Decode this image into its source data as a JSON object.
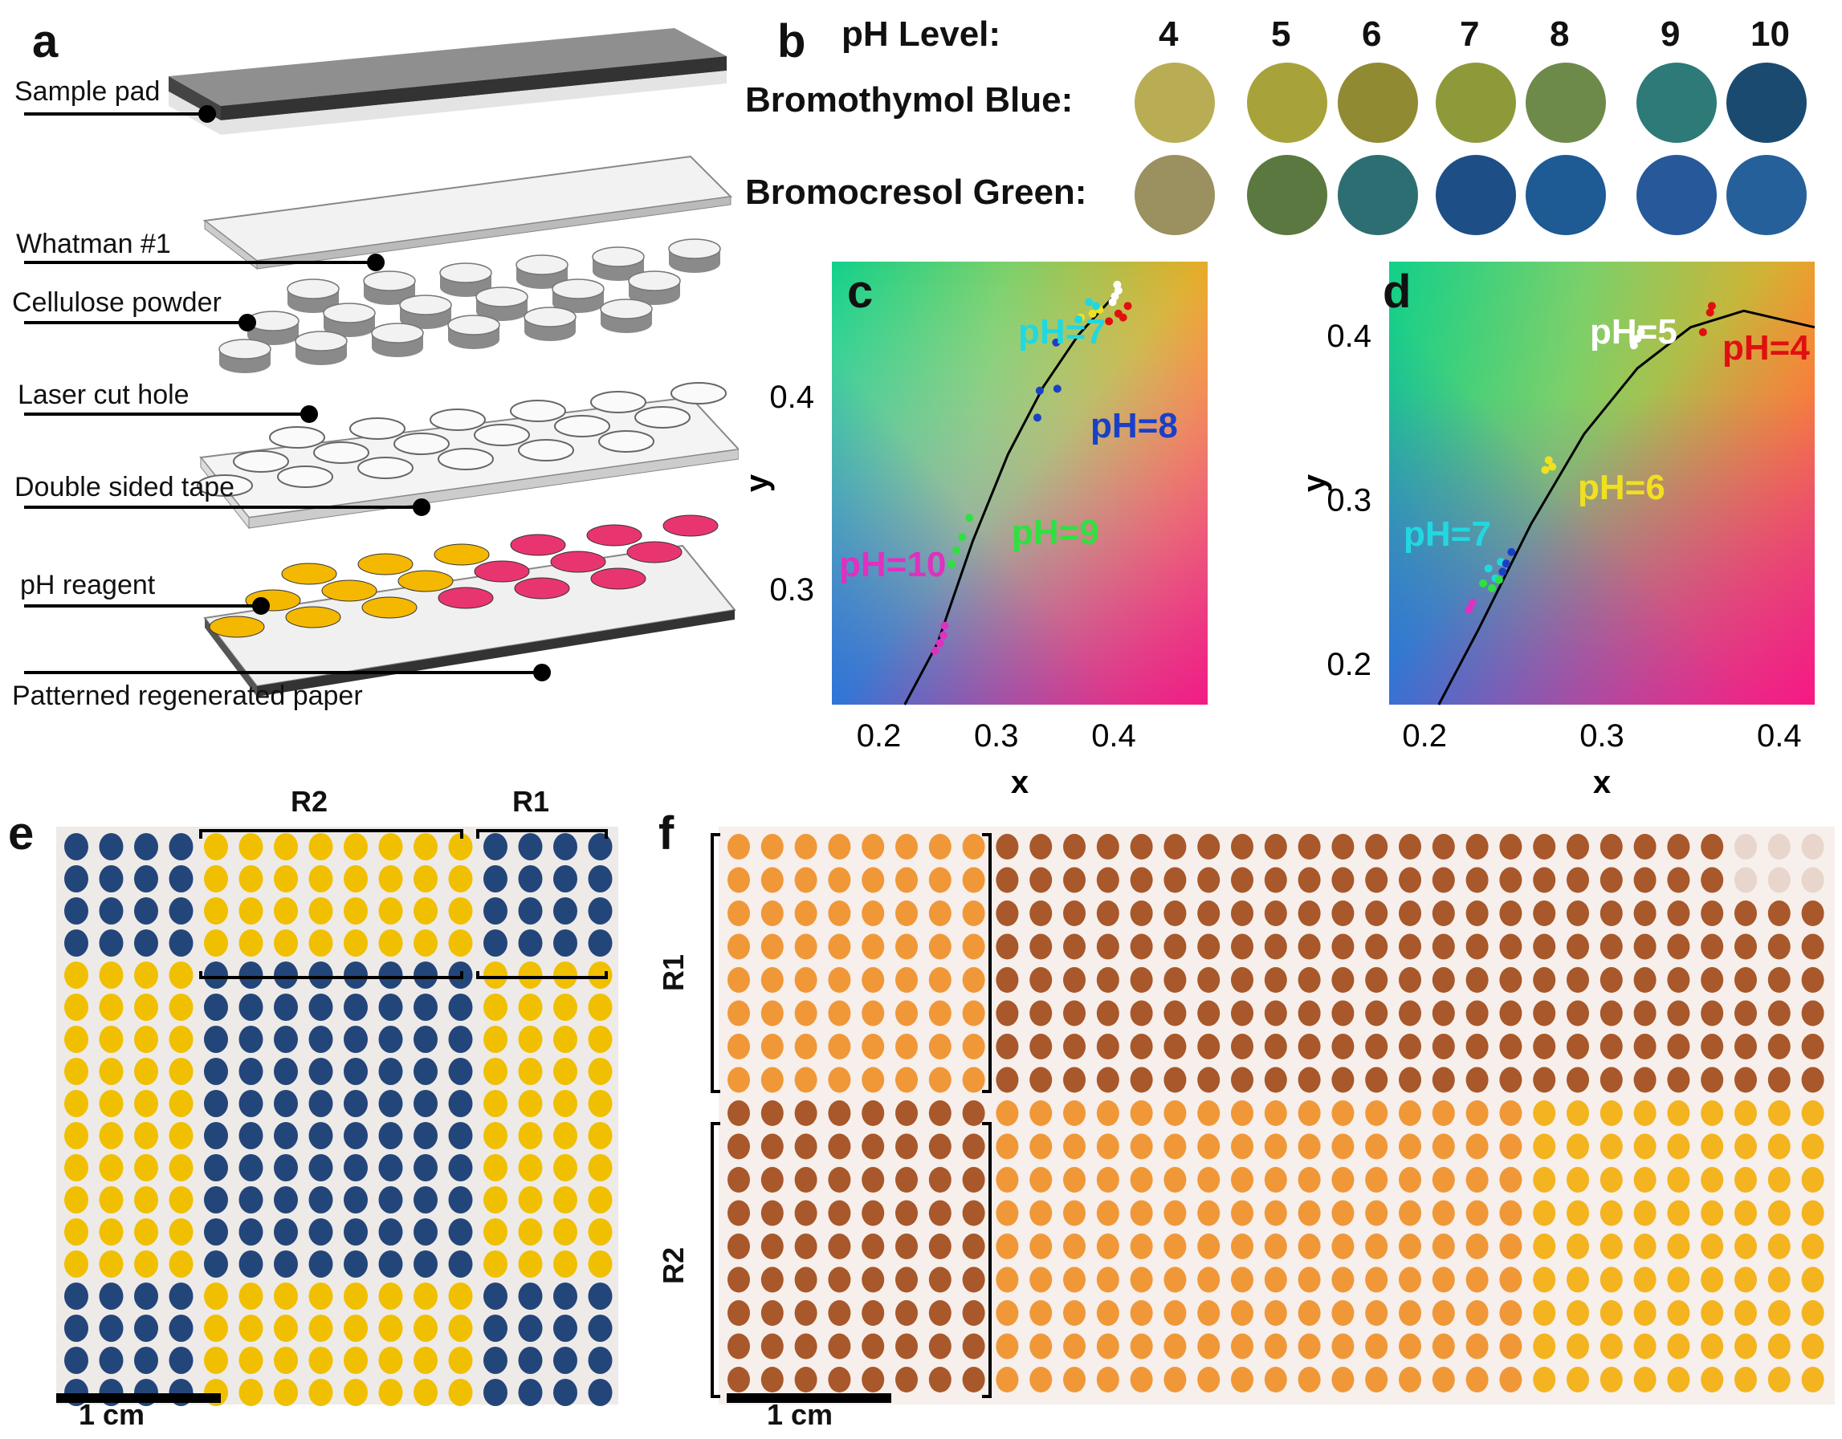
{
  "panel_labels": {
    "a": "a",
    "b": "b",
    "c": "c",
    "d": "d",
    "e": "e",
    "f": "f"
  },
  "panel_a": {
    "layers": [
      {
        "label": "Sample pad"
      },
      {
        "label": "Whatman #1"
      },
      {
        "label": "Cellulose powder"
      },
      {
        "label": "Laser cut hole"
      },
      {
        "label": "Double sided tape"
      },
      {
        "label": "pH reagent"
      },
      {
        "label": "Patterned regenerated paper"
      }
    ],
    "colors": {
      "reagent_yellow": "#f5b800",
      "reagent_pink": "#e83570",
      "sample_pad": "#9a9a9a"
    }
  },
  "panel_b": {
    "header": "pH Level:",
    "ph_levels": [
      "4",
      "5",
      "6",
      "7",
      "8",
      "9",
      "10"
    ],
    "rows": [
      {
        "name": "Bromothymol Blue:",
        "colors": [
          "#b8ad55",
          "#a8a23a",
          "#908a32",
          "#8e9a3a",
          "#6e8a4a",
          "#2d7a78",
          "#1a4a70"
        ]
      },
      {
        "name": "Bromocresol Green:",
        "colors": [
          "#9a9060",
          "#5a7840",
          "#2d6e72",
          "#1d4f86",
          "#1e5a94",
          "#27589a",
          "#26609a"
        ]
      }
    ]
  },
  "chart_data": [
    {
      "type": "scatter",
      "panel": "c",
      "xlabel": "x",
      "ylabel": "y",
      "xlim": [
        0.16,
        0.48
      ],
      "ylim": [
        0.24,
        0.47
      ],
      "xticks": [
        "0.2",
        "0.3",
        "0.4"
      ],
      "yticks": [
        "0.3",
        "0.4"
      ],
      "annotations": [
        {
          "text": "pH=7",
          "color": "#22d8e0"
        },
        {
          "text": "pH=8",
          "color": "#1a40c8"
        },
        {
          "text": "pH=9",
          "color": "#30e040"
        },
        {
          "text": "pH=10",
          "color": "#e030c0"
        }
      ],
      "series": [
        {
          "color": "#ffffff",
          "points": [
            [
              0.404,
              0.455
            ],
            [
              0.401,
              0.452
            ],
            [
              0.399,
              0.449
            ],
            [
              0.403,
              0.458
            ]
          ]
        },
        {
          "color": "#e01010",
          "points": [
            [
              0.412,
              0.447
            ],
            [
              0.404,
              0.443
            ],
            [
              0.408,
              0.441
            ],
            [
              0.396,
              0.439
            ]
          ]
        },
        {
          "color": "#f0e020",
          "points": [
            [
              0.372,
              0.441
            ],
            [
              0.382,
              0.443
            ],
            [
              0.388,
              0.445
            ]
          ]
        },
        {
          "color": "#20d8e0",
          "points": [
            [
              0.385,
              0.447
            ],
            [
              0.37,
              0.44
            ],
            [
              0.379,
              0.449
            ]
          ]
        },
        {
          "color": "#1a40c8",
          "points": [
            [
              0.351,
              0.428
            ],
            [
              0.352,
              0.404
            ],
            [
              0.337,
              0.403
            ],
            [
              0.335,
              0.389
            ]
          ]
        },
        {
          "color": "#30e040",
          "points": [
            [
              0.277,
              0.337
            ],
            [
              0.271,
              0.327
            ],
            [
              0.266,
              0.32
            ],
            [
              0.262,
              0.313
            ]
          ]
        },
        {
          "color": "#e030c0",
          "points": [
            [
              0.255,
              0.276
            ],
            [
              0.252,
              0.272
            ],
            [
              0.248,
              0.268
            ],
            [
              0.256,
              0.281
            ]
          ]
        }
      ],
      "curve": [
        [
          0.222,
          0.24
        ],
        [
          0.25,
          0.272
        ],
        [
          0.28,
          0.325
        ],
        [
          0.31,
          0.37
        ],
        [
          0.34,
          0.405
        ],
        [
          0.37,
          0.432
        ],
        [
          0.4,
          0.452
        ]
      ]
    },
    {
      "type": "scatter",
      "panel": "d",
      "xlabel": "x",
      "ylabel": "y",
      "xlim": [
        0.18,
        0.42
      ],
      "ylim": [
        0.175,
        0.445
      ],
      "xticks": [
        "0.2",
        "0.3",
        "0.4"
      ],
      "yticks": [
        "0.2",
        "0.3",
        "0.4"
      ],
      "annotations": [
        {
          "text": "pH=5",
          "color": "#ffffff"
        },
        {
          "text": "pH=4",
          "color": "#e01010"
        },
        {
          "text": "pH=6",
          "color": "#f0e020"
        },
        {
          "text": "pH=7",
          "color": "#22d8e0"
        }
      ],
      "series": [
        {
          "color": "#ffffff",
          "points": [
            [
              0.32,
              0.398
            ],
            [
              0.322,
              0.402
            ],
            [
              0.318,
              0.394
            ]
          ]
        },
        {
          "color": "#e01010",
          "points": [
            [
              0.362,
              0.418
            ],
            [
              0.357,
              0.402
            ],
            [
              0.361,
              0.414
            ]
          ]
        },
        {
          "color": "#f0e020",
          "points": [
            [
              0.27,
              0.324
            ],
            [
              0.272,
              0.32
            ],
            [
              0.268,
              0.318
            ]
          ]
        },
        {
          "color": "#20d8e0",
          "points": [
            [
              0.236,
              0.258
            ],
            [
              0.24,
              0.252
            ],
            [
              0.243,
              0.262
            ]
          ]
        },
        {
          "color": "#1a40c8",
          "points": [
            [
              0.249,
              0.268
            ],
            [
              0.246,
              0.261
            ],
            [
              0.244,
              0.256
            ]
          ]
        },
        {
          "color": "#30e040",
          "points": [
            [
              0.238,
              0.246
            ],
            [
              0.242,
              0.251
            ],
            [
              0.233,
              0.249
            ]
          ]
        },
        {
          "color": "#e030c0",
          "points": [
            [
              0.225,
              0.233
            ],
            [
              0.227,
              0.237
            ]
          ]
        }
      ],
      "curve": [
        [
          0.208,
          0.175
        ],
        [
          0.23,
          0.22
        ],
        [
          0.26,
          0.285
        ],
        [
          0.29,
          0.34
        ],
        [
          0.32,
          0.38
        ],
        [
          0.35,
          0.405
        ],
        [
          0.38,
          0.415
        ],
        [
          0.42,
          0.405
        ]
      ]
    }
  ],
  "panel_e": {
    "top_labels": [
      "R2",
      "R1"
    ],
    "scale": "1 cm",
    "colors": {
      "blue": "#23467a",
      "yellow": "#f0c000"
    }
  },
  "panel_f": {
    "side_labels": [
      "R1",
      "R2"
    ],
    "scale": "1 cm",
    "colors": {
      "orange": "#f09838",
      "brown": "#a8582a",
      "gold": "#f4b420"
    }
  }
}
